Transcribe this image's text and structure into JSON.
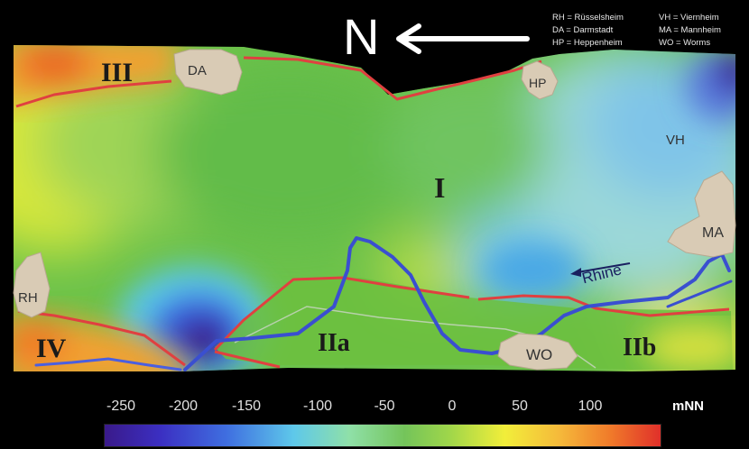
{
  "north": {
    "letter": "N",
    "arrow_icon": "left-arrow-icon"
  },
  "abbreviations": {
    "rh": "RH = Rüsselsheim",
    "da": "DA = Darmstadt",
    "hp": "HP = Heppenheim",
    "vh": "VH = Viernheim",
    "ma": "MA = Mannheim",
    "wo": "WO = Worms"
  },
  "cities": {
    "da": "DA",
    "hp": "HP",
    "vh": "VH",
    "ma": "MA",
    "rh": "RH",
    "wo": "WO"
  },
  "zones": {
    "i": "I",
    "iia": "IIa",
    "iib": "IIb",
    "iii": "III",
    "iv": "IV"
  },
  "river": {
    "label": "Rhine"
  },
  "scale": {
    "unit": "mNN",
    "labels": [
      "-250",
      "-200",
      "-150",
      "-100",
      "-50",
      "0",
      "50",
      "100"
    ],
    "colors": {
      "low": "#3a1a8a",
      "mid": "#74c45a",
      "high": "#e0302a"
    }
  },
  "colors": {
    "background": "#000000",
    "zone_boundary": "#e04040",
    "river": "#3a4fd0",
    "city_fill": "#d9cbb5"
  }
}
